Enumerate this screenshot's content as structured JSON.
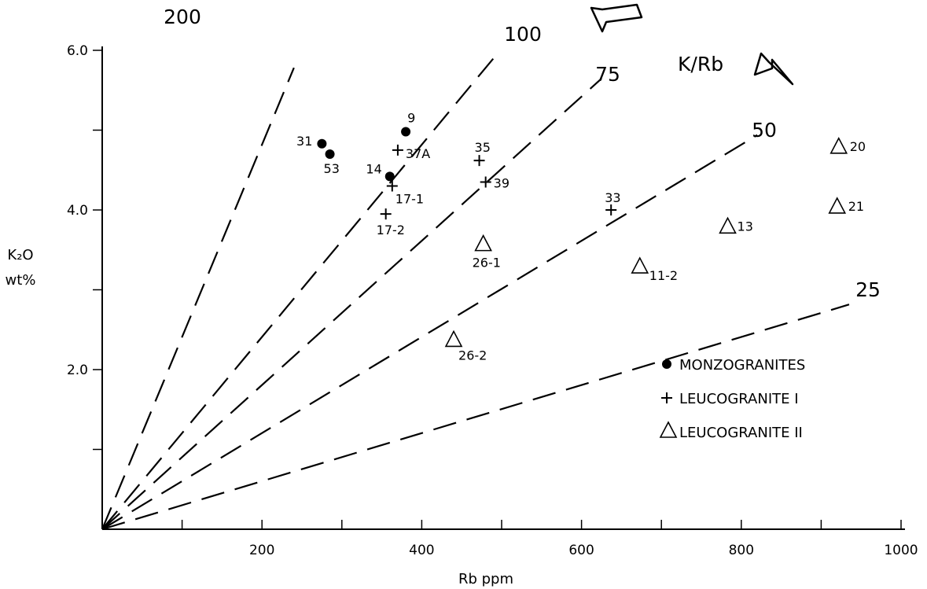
{
  "chart_data": {
    "type": "scatter",
    "title": "",
    "xlabel": "Rb ppm",
    "ylabel_main": "K₂O",
    "ylabel_unit": "wt%",
    "xlim": [
      0,
      1000
    ],
    "ylim": [
      0,
      6.0
    ],
    "x_ticks": [
      100,
      200,
      300,
      400,
      500,
      600,
      700,
      800,
      900,
      1000
    ],
    "x_tick_labels": [
      "200",
      "400",
      "600",
      "800",
      "1000"
    ],
    "x_tick_label_values": [
      200,
      400,
      600,
      800,
      1000
    ],
    "y_ticks": [
      1.0,
      2.0,
      3.0,
      4.0,
      5.0,
      6.0
    ],
    "y_tick_labels": [
      "2.0",
      "4.0",
      "6.0"
    ],
    "y_tick_label_values": [
      2.0,
      4.0,
      6.0
    ],
    "grid": false,
    "ratio_header": "K/Rb",
    "reference_lines": [
      {
        "label": "200",
        "ratio": 200
      },
      {
        "label": "100",
        "ratio": 100
      },
      {
        "label": "75",
        "ratio": 75
      },
      {
        "label": "50",
        "ratio": 50
      },
      {
        "label": "25",
        "ratio": 25
      }
    ],
    "series": [
      {
        "name": "MONZOGRANITES",
        "marker": "circle",
        "points": [
          {
            "label": "31",
            "x": 275,
            "y": 4.83
          },
          {
            "label": "53",
            "x": 285,
            "y": 4.7
          },
          {
            "label": "9",
            "x": 380,
            "y": 4.98
          },
          {
            "label": "14",
            "x": 360,
            "y": 4.42
          }
        ]
      },
      {
        "name": "LEUCOGRANITE I",
        "marker": "plus",
        "points": [
          {
            "label": "37A",
            "x": 370,
            "y": 4.75
          },
          {
            "label": "17-1",
            "x": 363,
            "y": 4.3
          },
          {
            "label": "17-2",
            "x": 355,
            "y": 3.95
          },
          {
            "label": "35",
            "x": 472,
            "y": 4.62
          },
          {
            "label": "39",
            "x": 480,
            "y": 4.35
          },
          {
            "label": "33",
            "x": 637,
            "y": 4.0
          }
        ]
      },
      {
        "name": "LEUCOGRANITE II",
        "marker": "triangle",
        "points": [
          {
            "label": "26-1",
            "x": 477,
            "y": 3.58
          },
          {
            "label": "26-2",
            "x": 440,
            "y": 2.38
          },
          {
            "label": "11-2",
            "x": 673,
            "y": 3.3
          },
          {
            "label": "13",
            "x": 783,
            "y": 3.8
          },
          {
            "label": "20",
            "x": 922,
            "y": 4.8
          },
          {
            "label": "21",
            "x": 920,
            "y": 4.05
          }
        ]
      }
    ]
  }
}
